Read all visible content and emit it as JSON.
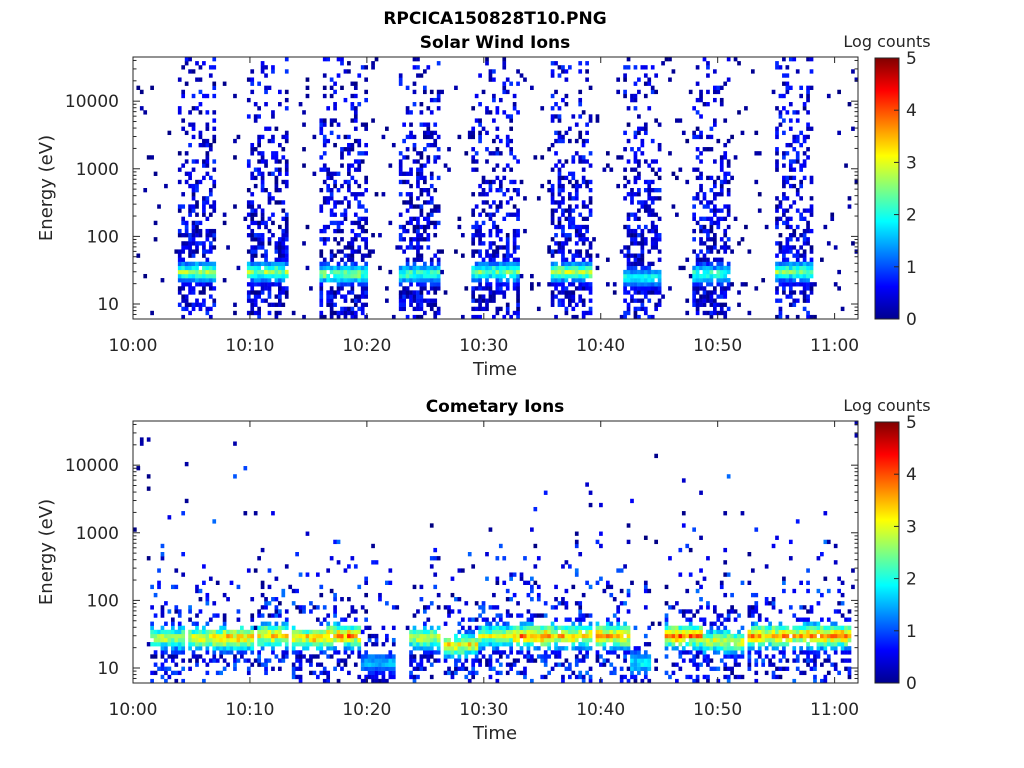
{
  "figure_title": "RPCICA150828T10.PNG",
  "chart_data": [
    {
      "type": "heatmap",
      "title": "Solar Wind Ions",
      "xlabel": "Time",
      "ylabel": "Energy (eV)",
      "yscale": "log",
      "xlim": [
        "10:00",
        "11:02"
      ],
      "ylim": [
        6,
        45000
      ],
      "xticks": [
        "10:00",
        "10:10",
        "10:20",
        "10:30",
        "10:40",
        "10:50",
        "11:00"
      ],
      "yticks": [
        "10",
        "100",
        "1000",
        "10000"
      ],
      "colorbar": {
        "label": "Log counts",
        "min": 0,
        "max": 5,
        "ticks": [
          "0",
          "1",
          "2",
          "3",
          "4",
          "5"
        ]
      },
      "bursts": [
        {
          "start": "10:04",
          "end": "10:07",
          "peak_energy_eV": 30,
          "peak_log_counts": 2.7
        },
        {
          "start": "10:10",
          "end": "10:13",
          "peak_energy_eV": 30,
          "peak_log_counts": 2.7
        },
        {
          "start": "10:16",
          "end": "10:20",
          "peak_energy_eV": 28,
          "peak_log_counts": 2.6
        },
        {
          "start": "10:23",
          "end": "10:26",
          "peak_energy_eV": 28,
          "peak_log_counts": 2.3
        },
        {
          "start": "10:29",
          "end": "10:33",
          "peak_energy_eV": 30,
          "peak_log_counts": 2.5
        },
        {
          "start": "10:36",
          "end": "10:39",
          "peak_energy_eV": 30,
          "peak_log_counts": 2.9
        },
        {
          "start": "10:42",
          "end": "10:45",
          "peak_energy_eV": 25,
          "peak_log_counts": 2.0
        },
        {
          "start": "10:48",
          "end": "10:51",
          "peak_energy_eV": 28,
          "peak_log_counts": 2.3
        },
        {
          "start": "10:55",
          "end": "10:58",
          "peak_energy_eV": 30,
          "peak_log_counts": 2.6
        }
      ]
    },
    {
      "type": "heatmap",
      "title": "Cometary Ions",
      "xlabel": "Time",
      "ylabel": "Energy (eV)",
      "yscale": "log",
      "xlim": [
        "10:00",
        "11:02"
      ],
      "ylim": [
        6,
        45000
      ],
      "xticks": [
        "10:00",
        "10:10",
        "10:20",
        "10:30",
        "10:40",
        "10:50",
        "11:00"
      ],
      "yticks": [
        "10",
        "100",
        "1000",
        "10000"
      ],
      "colorbar": {
        "label": "Log counts",
        "min": 0,
        "max": 5,
        "ticks": [
          "0",
          "1",
          "2",
          "3",
          "4",
          "5"
        ]
      },
      "bursts": [
        {
          "start": "10:02",
          "end": "10:04",
          "peak_energy_eV": 28,
          "peak_log_counts": 3.0
        },
        {
          "start": "10:05",
          "end": "10:07",
          "peak_energy_eV": 28,
          "peak_log_counts": 3.2
        },
        {
          "start": "10:07",
          "end": "10:10",
          "peak_energy_eV": 28,
          "peak_log_counts": 3.7
        },
        {
          "start": "10:11",
          "end": "10:13",
          "peak_energy_eV": 30,
          "peak_log_counts": 3.6
        },
        {
          "start": "10:14",
          "end": "10:16",
          "peak_energy_eV": 28,
          "peak_log_counts": 3.6
        },
        {
          "start": "10:17",
          "end": "10:19",
          "peak_energy_eV": 30,
          "peak_log_counts": 3.8
        },
        {
          "start": "10:20",
          "end": "10:22",
          "peak_energy_eV": 12,
          "peak_log_counts": 1.5
        },
        {
          "start": "10:24",
          "end": "10:26",
          "peak_energy_eV": 28,
          "peak_log_counts": 3.1
        },
        {
          "start": "10:27",
          "end": "10:29",
          "peak_energy_eV": 22,
          "peak_log_counts": 3.3
        },
        {
          "start": "10:30",
          "end": "10:32",
          "peak_energy_eV": 30,
          "peak_log_counts": 3.0
        },
        {
          "start": "10:33",
          "end": "10:36",
          "peak_energy_eV": 30,
          "peak_log_counts": 3.9
        },
        {
          "start": "10:36",
          "end": "10:39",
          "peak_energy_eV": 30,
          "peak_log_counts": 3.6
        },
        {
          "start": "10:40",
          "end": "10:42",
          "peak_energy_eV": 30,
          "peak_log_counts": 4.0
        },
        {
          "start": "10:43",
          "end": "10:44",
          "peak_energy_eV": 12,
          "peak_log_counts": 2.0
        },
        {
          "start": "10:46",
          "end": "10:49",
          "peak_energy_eV": 30,
          "peak_log_counts": 4.0
        },
        {
          "start": "10:49",
          "end": "10:52",
          "peak_energy_eV": 25,
          "peak_log_counts": 3.2
        },
        {
          "start": "10:53",
          "end": "10:55",
          "peak_energy_eV": 30,
          "peak_log_counts": 3.8
        },
        {
          "start": "10:56",
          "end": "10:58",
          "peak_energy_eV": 30,
          "peak_log_counts": 3.7
        },
        {
          "start": "10:59",
          "end": "11:01",
          "peak_energy_eV": 30,
          "peak_log_counts": 4.0
        }
      ]
    }
  ]
}
